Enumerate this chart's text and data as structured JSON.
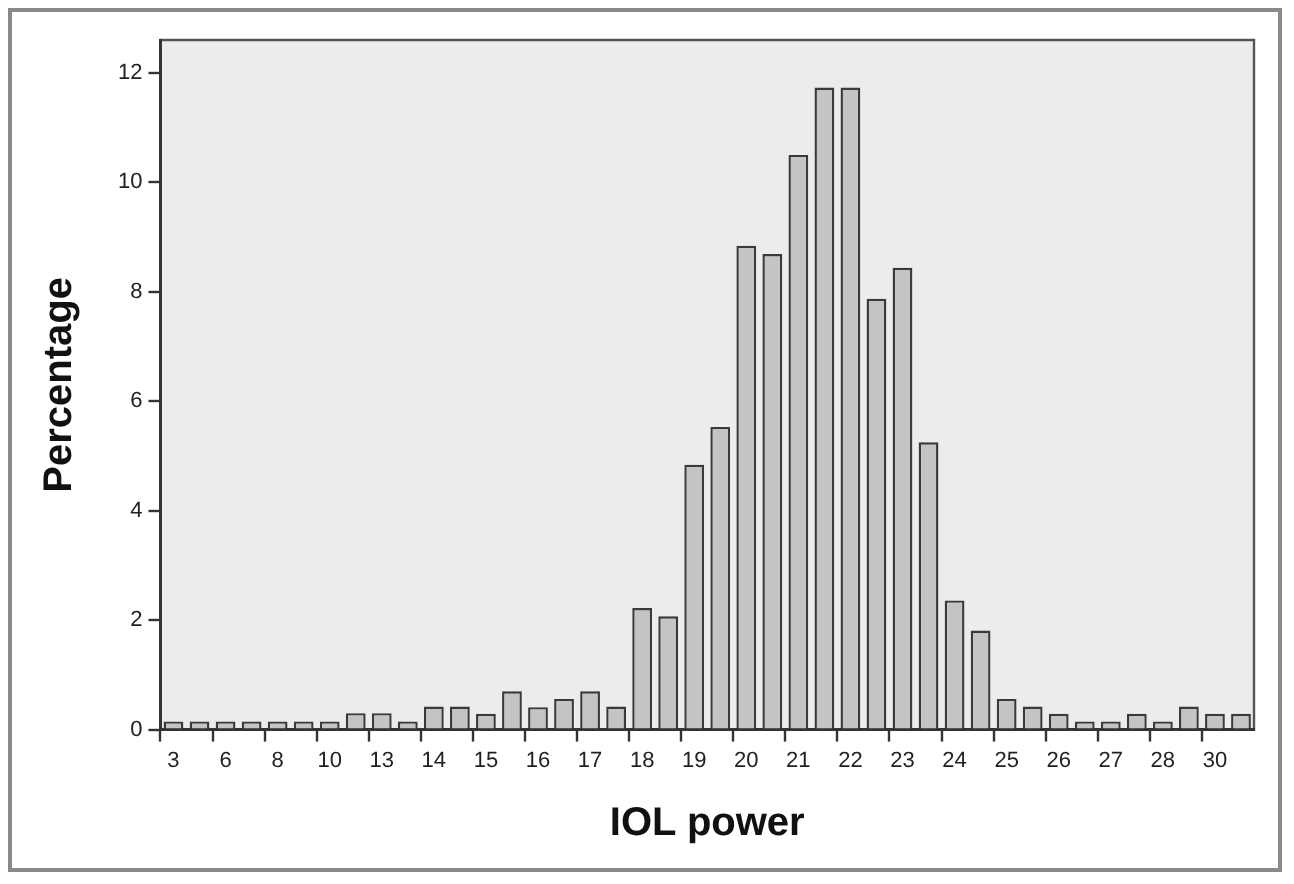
{
  "chart_data": {
    "type": "bar",
    "xlabel": "IOL power",
    "ylabel": "Percentage",
    "categories": [
      "3",
      null,
      "6",
      null,
      "8",
      null,
      "10",
      null,
      "13",
      null,
      "14",
      null,
      "15",
      null,
      "16",
      null,
      "17",
      null,
      "18",
      null,
      "19",
      null,
      "20",
      null,
      "21",
      null,
      "22",
      null,
      "23",
      null,
      "24",
      null,
      "25",
      null,
      "26",
      null,
      "27",
      null,
      "28",
      null,
      "30",
      null
    ],
    "values": [
      0.15,
      0.15,
      0.15,
      0.15,
      0.15,
      0.15,
      0.15,
      0.3,
      0.3,
      0.15,
      0.42,
      0.42,
      0.29,
      0.7,
      0.41,
      0.56,
      0.7,
      0.42,
      2.22,
      2.07,
      4.84,
      5.53,
      8.84,
      8.69,
      10.5,
      11.73,
      11.73,
      7.87,
      8.44,
      5.25,
      2.36,
      1.81,
      0.56,
      0.42,
      0.29,
      0.15,
      0.15,
      0.29,
      0.15,
      0.42,
      0.29,
      0.29
    ],
    "color": "#c4c4c4",
    "ylim": [
      0,
      12.6
    ],
    "yticks": [
      0,
      2,
      4,
      6,
      8,
      10,
      12
    ],
    "grid": false,
    "legend": false
  }
}
